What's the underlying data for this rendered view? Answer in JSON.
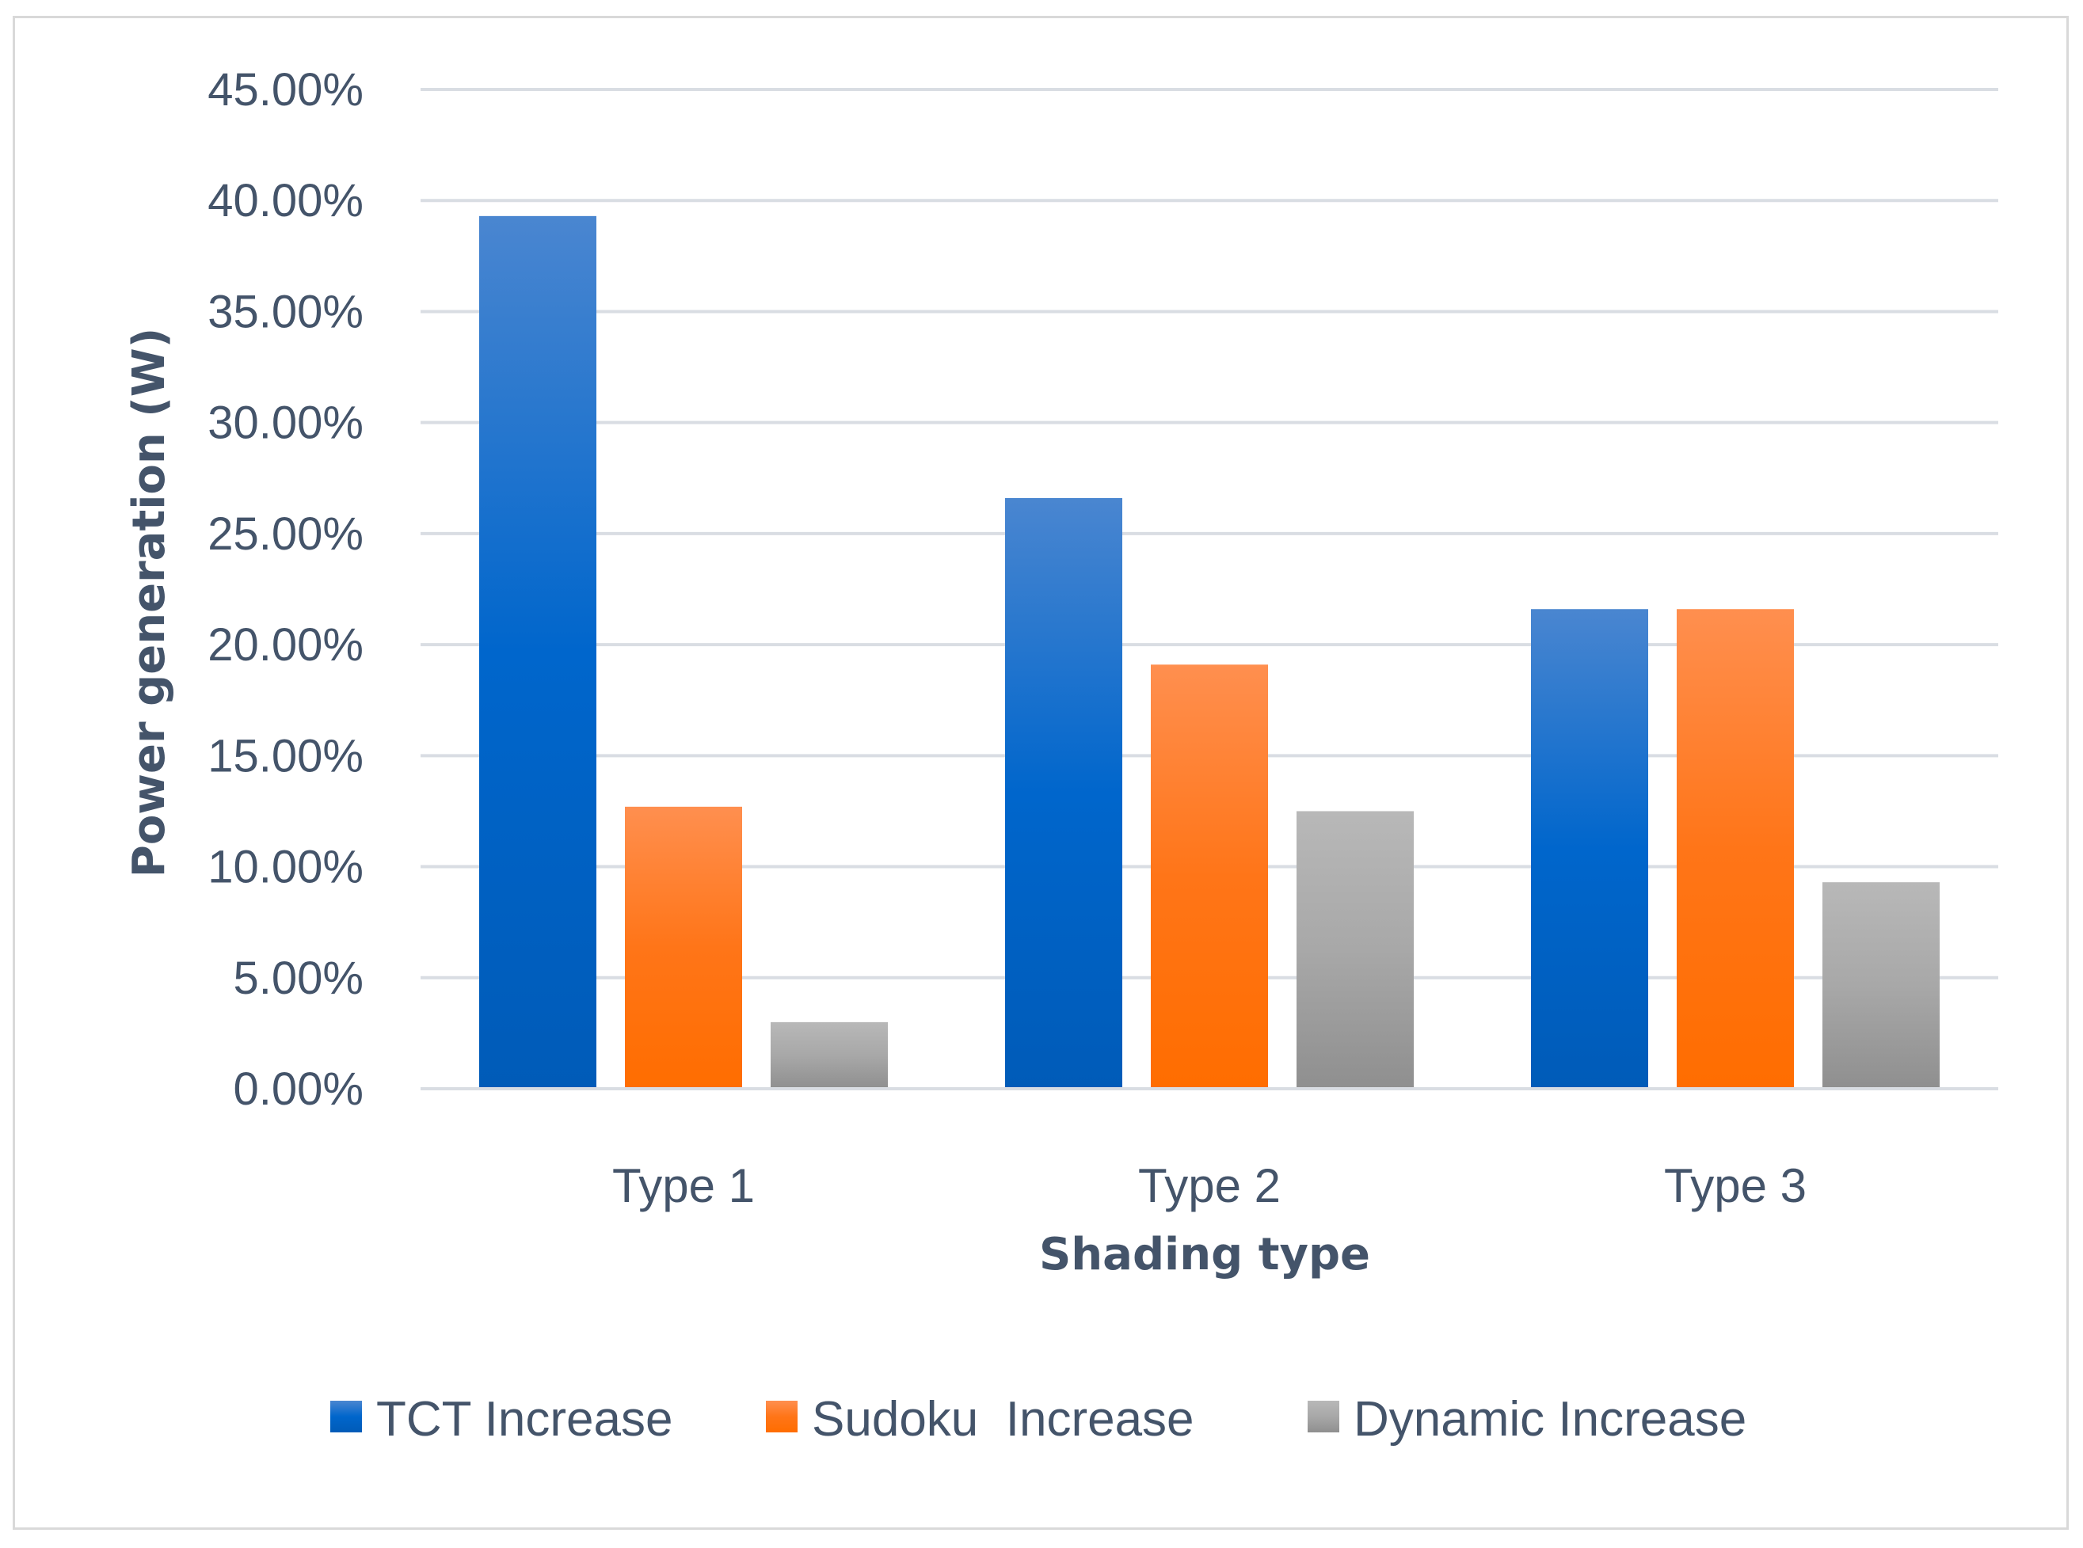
{
  "chart_data": {
    "type": "bar",
    "title": "",
    "xlabel": "Shading type",
    "ylabel": "Power generation (W)",
    "ylim": [
      0,
      0.45
    ],
    "yticks": [
      "0.00%",
      "5.00%",
      "10.00%",
      "15.00%",
      "20.00%",
      "25.00%",
      "30.00%",
      "35.00%",
      "40.00%",
      "45.00%"
    ],
    "categories": [
      "Type 1",
      "Type 2",
      "Type 3"
    ],
    "series": [
      {
        "name": "TCT Increase",
        "values": [
          0.393,
          0.266,
          0.216
        ],
        "color": "#0066cc",
        "color_light": "#4a86d0",
        "color_dark": "#005bb8"
      },
      {
        "name": "Sudoku  Increase",
        "values": [
          0.127,
          0.191,
          0.216
        ],
        "color": "#ff7518",
        "color_light": "#ff8f4f",
        "color_dark": "#ff6d00"
      },
      {
        "name": "Dynamic Increase",
        "values": [
          0.03,
          0.125,
          0.093
        ],
        "color": "#a8a8a8",
        "color_light": "#b8b8b8",
        "color_dark": "#8f8f8f"
      }
    ],
    "grid": true,
    "legend_position": "bottom"
  }
}
